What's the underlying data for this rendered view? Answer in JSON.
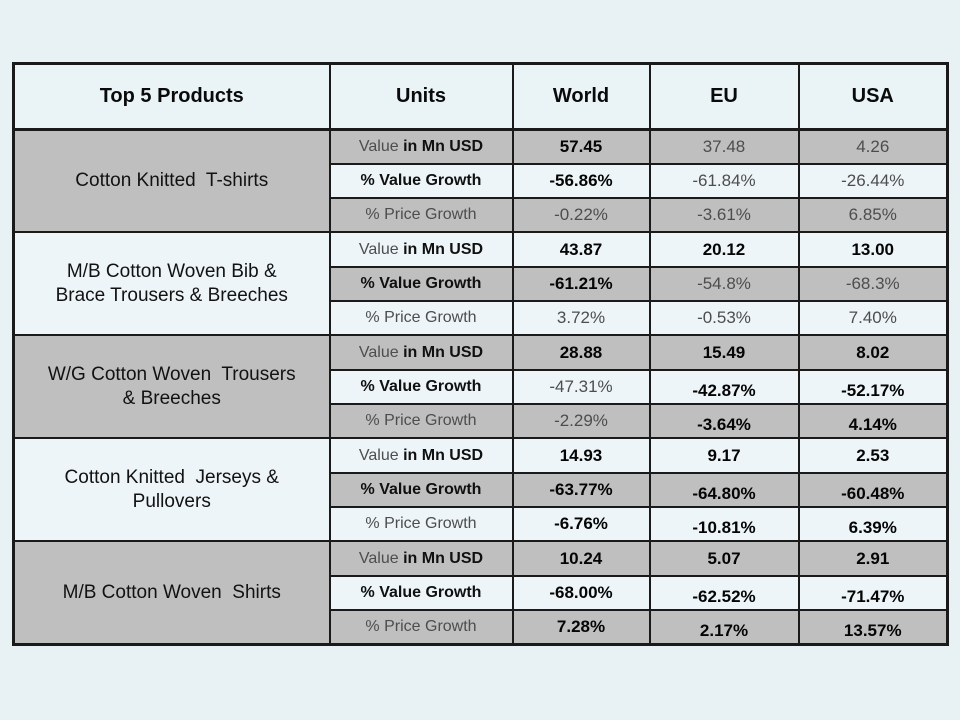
{
  "palette": {
    "page_bg": "#e8f1f4",
    "light_cell": "#edf5f8",
    "gray_cell": "#bfbfbf",
    "border": "#1a1a1a",
    "strong_text": "#050505",
    "muted_text": "#4d4d4d"
  },
  "table": {
    "headers": [
      "Top 5 Products",
      "Units",
      "World",
      "EU",
      "USA"
    ],
    "unit_labels": {
      "value_prefix": "Value ",
      "value_rest": "in Mn USD",
      "value_growth": "% Value Growth",
      "price_growth": "% Price Growth"
    },
    "products": [
      {
        "name": "Cotton Knitted  T-shirts",
        "rows": [
          {
            "unit": "value",
            "cells": [
              {
                "v": "57.45",
                "s": "strong"
              },
              {
                "v": "37.48",
                "s": "muted"
              },
              {
                "v": "4.26",
                "s": "muted"
              }
            ]
          },
          {
            "unit": "value_growth",
            "cells": [
              {
                "v": "-56.86%",
                "s": "strong"
              },
              {
                "v": "-61.84%",
                "s": "muted"
              },
              {
                "v": "-26.44%",
                "s": "muted"
              }
            ]
          },
          {
            "unit": "price_growth",
            "cells": [
              {
                "v": "-0.22%",
                "s": "muted"
              },
              {
                "v": "-3.61%",
                "s": "muted"
              },
              {
                "v": "6.85%",
                "s": "muted"
              }
            ]
          }
        ]
      },
      {
        "name": "M/B Cotton Woven Bib &\nBrace Trousers & Breeches",
        "rows": [
          {
            "unit": "value",
            "cells": [
              {
                "v": "43.87",
                "s": "strong"
              },
              {
                "v": "20.12",
                "s": "strong"
              },
              {
                "v": "13.00",
                "s": "strong"
              }
            ]
          },
          {
            "unit": "value_growth",
            "cells": [
              {
                "v": "-61.21%",
                "s": "strong"
              },
              {
                "v": "-54.8%",
                "s": "muted"
              },
              {
                "v": "-68.3%",
                "s": "muted"
              }
            ]
          },
          {
            "unit": "price_growth",
            "cells": [
              {
                "v": "3.72%",
                "s": "muted"
              },
              {
                "v": "-0.53%",
                "s": "muted"
              },
              {
                "v": "7.40%",
                "s": "muted"
              }
            ]
          }
        ]
      },
      {
        "name": "W/G Cotton Woven  Trousers\n& Breeches",
        "rows": [
          {
            "unit": "value",
            "cells": [
              {
                "v": "28.88",
                "s": "strong"
              },
              {
                "v": "15.49",
                "s": "strong"
              },
              {
                "v": "8.02",
                "s": "strong"
              }
            ]
          },
          {
            "unit": "value_growth",
            "cells": [
              {
                "v": "-47.31%",
                "s": "muted"
              },
              {
                "v": "-42.87%",
                "s": "strong",
                "low": true
              },
              {
                "v": "-52.17%",
                "s": "strong",
                "low": true
              }
            ]
          },
          {
            "unit": "price_growth",
            "cells": [
              {
                "v": "-2.29%",
                "s": "muted"
              },
              {
                "v": "-3.64%",
                "s": "strong",
                "low": true
              },
              {
                "v": "4.14%",
                "s": "strong",
                "low": true
              }
            ]
          }
        ]
      },
      {
        "name": "Cotton Knitted  Jerseys &\nPullovers",
        "rows": [
          {
            "unit": "value",
            "cells": [
              {
                "v": "14.93",
                "s": "strong"
              },
              {
                "v": "9.17",
                "s": "strong"
              },
              {
                "v": "2.53",
                "s": "strong"
              }
            ]
          },
          {
            "unit": "value_growth",
            "cells": [
              {
                "v": "-63.77%",
                "s": "strong"
              },
              {
                "v": "-64.80%",
                "s": "strong",
                "low": true
              },
              {
                "v": "-60.48%",
                "s": "strong",
                "low": true
              }
            ]
          },
          {
            "unit": "price_growth",
            "cells": [
              {
                "v": "-6.76%",
                "s": "strong"
              },
              {
                "v": "-10.81%",
                "s": "strong",
                "low": true
              },
              {
                "v": "6.39%",
                "s": "strong",
                "low": true
              }
            ]
          }
        ]
      },
      {
        "name": "M/B Cotton Woven  Shirts",
        "rows": [
          {
            "unit": "value",
            "cells": [
              {
                "v": "10.24",
                "s": "strong"
              },
              {
                "v": "5.07",
                "s": "strong"
              },
              {
                "v": "2.91",
                "s": "strong"
              }
            ]
          },
          {
            "unit": "value_growth",
            "cells": [
              {
                "v": "-68.00%",
                "s": "strong"
              },
              {
                "v": "-62.52%",
                "s": "strong",
                "low": true
              },
              {
                "v": "-71.47%",
                "s": "strong",
                "low": true
              }
            ]
          },
          {
            "unit": "price_growth",
            "cells": [
              {
                "v": "7.28%",
                "s": "strong"
              },
              {
                "v": "2.17%",
                "s": "strong",
                "low": true
              },
              {
                "v": "13.57%",
                "s": "strong",
                "low": true
              }
            ]
          }
        ]
      }
    ]
  }
}
